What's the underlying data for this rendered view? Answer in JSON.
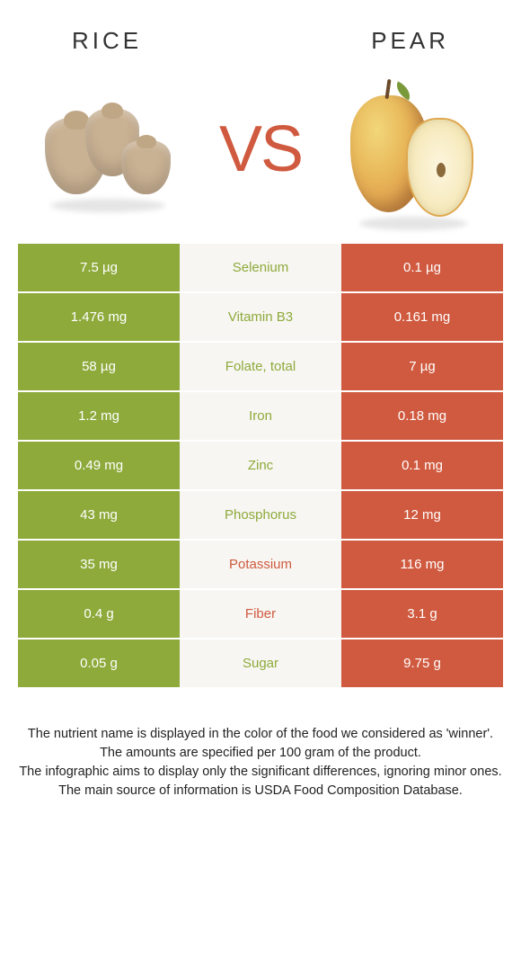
{
  "header": {
    "left": "RICE",
    "right": "PEAR",
    "vs": "VS"
  },
  "colors": {
    "rice": "#8eaa3b",
    "pear": "#d05a3f",
    "mid_bg": "#f7f6f2",
    "text_white": "#ffffff"
  },
  "table": {
    "rows": [
      {
        "nutrient": "Selenium",
        "left": "7.5 µg",
        "right": "0.1 µg",
        "winner": "rice"
      },
      {
        "nutrient": "Vitamin B3",
        "left": "1.476 mg",
        "right": "0.161 mg",
        "winner": "rice"
      },
      {
        "nutrient": "Folate, total",
        "left": "58 µg",
        "right": "7 µg",
        "winner": "rice"
      },
      {
        "nutrient": "Iron",
        "left": "1.2 mg",
        "right": "0.18 mg",
        "winner": "rice"
      },
      {
        "nutrient": "Zinc",
        "left": "0.49 mg",
        "right": "0.1 mg",
        "winner": "rice"
      },
      {
        "nutrient": "Phosphorus",
        "left": "43 mg",
        "right": "12 mg",
        "winner": "rice"
      },
      {
        "nutrient": "Potassium",
        "left": "35 mg",
        "right": "116 mg",
        "winner": "pear"
      },
      {
        "nutrient": "Fiber",
        "left": "0.4 g",
        "right": "3.1 g",
        "winner": "pear"
      },
      {
        "nutrient": "Sugar",
        "left": "0.05 g",
        "right": "9.75 g",
        "winner": "rice"
      }
    ]
  },
  "footer": {
    "lines": [
      "The nutrient name is displayed in the color of the food we considered as 'winner'.",
      "The amounts are specified per 100 gram of the product.",
      "The infographic aims to display only the significant differences, ignoring minor ones.",
      "The main source of information is USDA Food Composition Database."
    ]
  }
}
